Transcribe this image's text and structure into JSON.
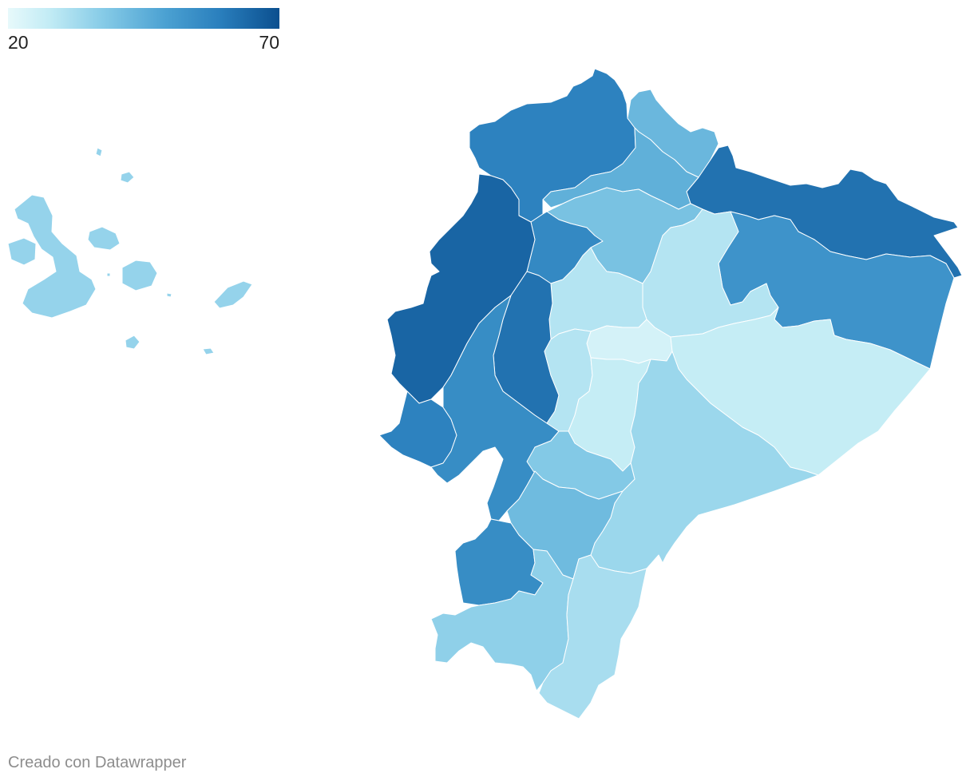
{
  "legend": {
    "min_label": "20",
    "max_label": "70",
    "min_value": 20,
    "max_value": 70,
    "color_low": "#e7f9fb",
    "color_high": "#0b4f8f"
  },
  "credit": "Creado con Datawrapper",
  "regions": [
    {
      "id": "galapagos",
      "value": 35
    },
    {
      "id": "esmeraldas",
      "value": 58
    },
    {
      "id": "carchi",
      "value": 43
    },
    {
      "id": "sucumbios",
      "value": 62
    },
    {
      "id": "imbabura",
      "value": 45
    },
    {
      "id": "pichincha",
      "value": 40
    },
    {
      "id": "santo-domingo",
      "value": 56
    },
    {
      "id": "manabi",
      "value": 65
    },
    {
      "id": "orellana",
      "value": 53
    },
    {
      "id": "napo",
      "value": 30
    },
    {
      "id": "cotopaxi",
      "value": 30
    },
    {
      "id": "tungurahua",
      "value": 24
    },
    {
      "id": "pastaza",
      "value": 27
    },
    {
      "id": "los-rios",
      "value": 62
    },
    {
      "id": "santa-elena",
      "value": 58
    },
    {
      "id": "guayas",
      "value": 55
    },
    {
      "id": "bolivar",
      "value": 30
    },
    {
      "id": "chimborazo",
      "value": 27
    },
    {
      "id": "morona-santiago",
      "value": 34
    },
    {
      "id": "canar",
      "value": 38
    },
    {
      "id": "azuay",
      "value": 42
    },
    {
      "id": "el-oro",
      "value": 55
    },
    {
      "id": "loja",
      "value": 36
    },
    {
      "id": "zamora-chinchipe",
      "value": 32
    }
  ]
}
